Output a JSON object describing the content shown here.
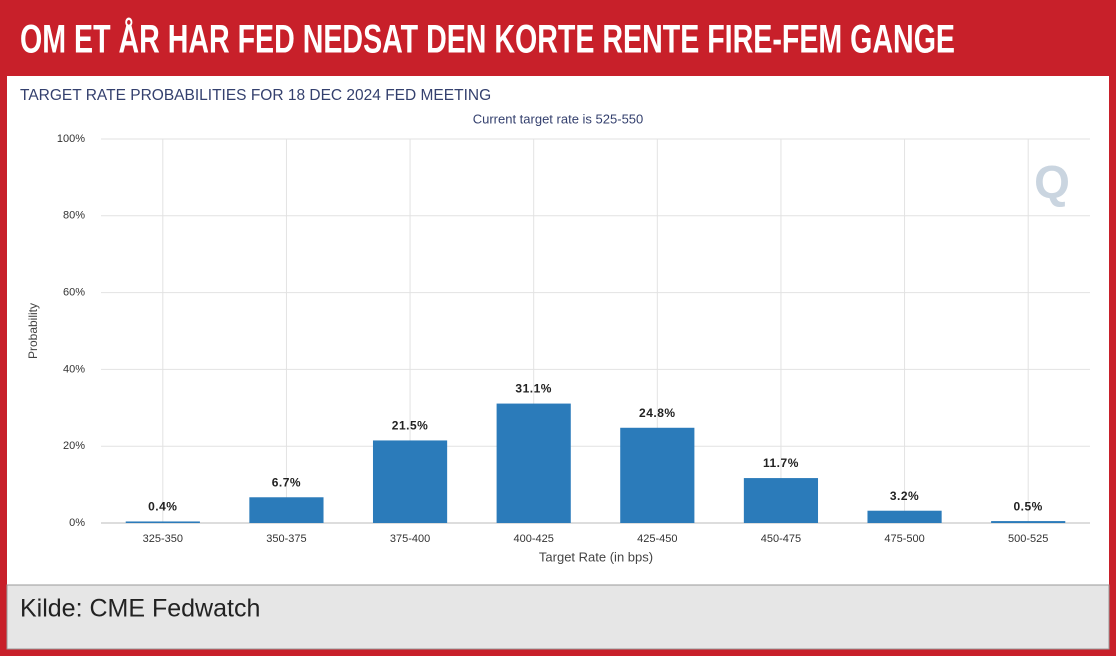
{
  "header": {
    "title": "OM ET ÅR HAR FED NEDSAT DEN KORTE RENTE FIRE-FEM GANGE"
  },
  "chart_data": {
    "type": "bar",
    "title": "TARGET RATE PROBABILITIES FOR 18 DEC 2024 FED MEETING",
    "subtitle": "Current target rate is 525-550",
    "x_label": "Target Rate (in bps)",
    "y_label": "Probability",
    "categories": [
      "325-350",
      "350-375",
      "375-400",
      "400-425",
      "425-450",
      "450-475",
      "475-500",
      "500-525"
    ],
    "values": [
      0.4,
      6.7,
      21.5,
      31.1,
      24.8,
      11.7,
      3.2,
      0.5
    ],
    "value_labels": [
      "0.4%",
      "6.7%",
      "21.5%",
      "31.1%",
      "24.8%",
      "11.7%",
      "3.2%",
      "0.5%"
    ],
    "color": "#2b7bba",
    "ylim": [
      0,
      100
    ],
    "yticks": [
      {
        "value": 0,
        "label": "0%"
      },
      {
        "value": 20,
        "label": "20%"
      },
      {
        "value": 40,
        "label": "40%"
      },
      {
        "value": 60,
        "label": "60%"
      },
      {
        "value": 80,
        "label": "80%"
      },
      {
        "value": 100,
        "label": "100%"
      }
    ],
    "grid": true
  },
  "footer": {
    "source": "Kilde: CME Fedwatch"
  }
}
